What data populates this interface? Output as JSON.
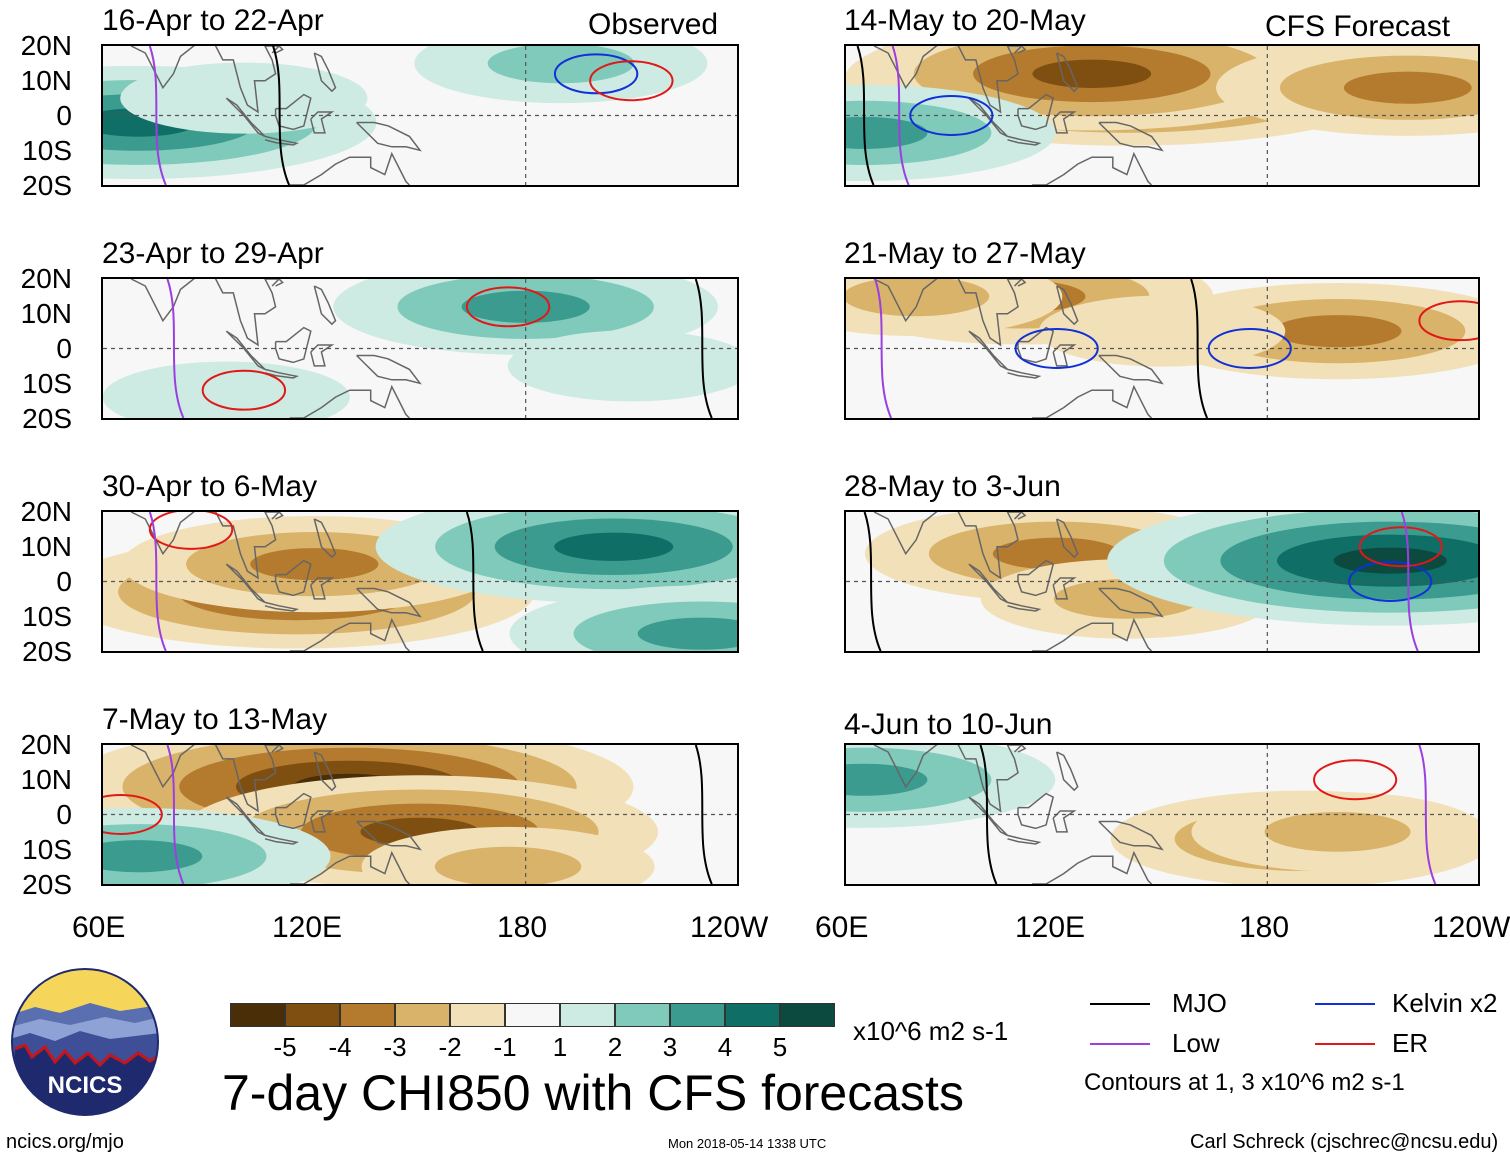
{
  "colors": {
    "background": "#f7f7f7",
    "palette": [
      "#4a2e08",
      "#7e4f10",
      "#b47a2e",
      "#d9b36a",
      "#f2e1b8",
      "#f7f7f7",
      "#cdebe2",
      "#80cabb",
      "#3b9b8e",
      "#0f6e65",
      "#0c4a40"
    ],
    "mjo": "#000000",
    "low": "#9b3fe0",
    "kelvin": "#1030d8",
    "er": "#e01818"
  },
  "headers": {
    "observed": "Observed",
    "forecast": "CFS Forecast"
  },
  "y_labels": [
    "20N",
    "10N",
    "0",
    "10S",
    "20S"
  ],
  "x_labels_left": [
    "60E",
    "120E",
    "180",
    "120W"
  ],
  "x_labels_right": [
    "60E",
    "120E",
    "180",
    "120W"
  ],
  "colorbar": {
    "ticks": [
      "-5",
      "-4",
      "-3",
      "-2",
      "-1",
      "1",
      "2",
      "3",
      "4",
      "5"
    ],
    "units": "x10^6 m2 s-1"
  },
  "legend": {
    "mjo": "MJO",
    "kelvin": "Kelvin x2",
    "low": "Low",
    "er": "ER",
    "contours_note": "Contours at 1, 3 x10^6 m2 s-1"
  },
  "main_title": "7-day CHI850 with CFS forecasts",
  "logo_text": "NCICS",
  "footer": {
    "url": "ncics.org/mjo",
    "timestamp": "Mon 2018-05-14 1338 UTC",
    "credit": "Carl Schreck (cjschrec@ncsu.edu)"
  },
  "chart_data": [
    {
      "type": "heatmap",
      "title": "16-Apr to 22-Apr",
      "source": "Observed",
      "xlim": [
        60,
        240
      ],
      "ylim": [
        -20,
        20
      ],
      "anomalies": [
        {
          "lon": 70,
          "lat": -2,
          "value": 4
        },
        {
          "lon": 100,
          "lat": 5,
          "value": 1.5
        },
        {
          "lon": 190,
          "lat": 15,
          "value": 2
        }
      ],
      "contours": [
        {
          "wave": "MJO",
          "lon": 110,
          "lat": 0
        },
        {
          "wave": "Low",
          "lon": 75,
          "lat": 0
        },
        {
          "wave": "Kelvin",
          "lon": 200,
          "lat": 12
        },
        {
          "wave": "ER",
          "lon": 210,
          "lat": 10
        }
      ]
    },
    {
      "type": "heatmap",
      "title": "23-Apr to 29-Apr",
      "source": "Observed",
      "xlim": [
        60,
        240
      ],
      "ylim": [
        -20,
        20
      ],
      "anomalies": [
        {
          "lon": 180,
          "lat": 12,
          "value": 3
        },
        {
          "lon": 95,
          "lat": -14,
          "value": 1.5
        },
        {
          "lon": 210,
          "lat": -5,
          "value": 1.5
        }
      ],
      "contours": [
        {
          "wave": "ER",
          "lon": 175,
          "lat": 12
        },
        {
          "wave": "ER",
          "lon": 100,
          "lat": -12
        },
        {
          "wave": "Low",
          "lon": 80,
          "lat": 0
        },
        {
          "wave": "MJO",
          "lon": 230,
          "lat": 0
        }
      ]
    },
    {
      "type": "heatmap",
      "title": "30-Apr to 6-May",
      "source": "Observed",
      "xlim": [
        60,
        240
      ],
      "ylim": [
        -20,
        20
      ],
      "anomalies": [
        {
          "lon": 115,
          "lat": -3,
          "value": -4
        },
        {
          "lon": 120,
          "lat": 5,
          "value": -3
        },
        {
          "lon": 205,
          "lat": 10,
          "value": 4
        },
        {
          "lon": 230,
          "lat": -15,
          "value": 3
        }
      ],
      "contours": [
        {
          "wave": "MJO",
          "lon": 165,
          "lat": 5
        },
        {
          "wave": "ER",
          "lon": 85,
          "lat": 15
        },
        {
          "wave": "Low",
          "lon": 75,
          "lat": 0
        }
      ]
    },
    {
      "type": "heatmap",
      "title": "7-May to 13-May",
      "source": "Observed",
      "xlim": [
        60,
        240
      ],
      "ylim": [
        -20,
        20
      ],
      "anomalies": [
        {
          "lon": 130,
          "lat": 8,
          "value": -5
        },
        {
          "lon": 150,
          "lat": -5,
          "value": -4
        },
        {
          "lon": 70,
          "lat": -12,
          "value": 3
        },
        {
          "lon": 175,
          "lat": -15,
          "value": -2
        }
      ],
      "contours": [
        {
          "wave": "Low",
          "lon": 80,
          "lat": 0
        },
        {
          "wave": "ER",
          "lon": 65,
          "lat": 0
        },
        {
          "wave": "MJO",
          "lon": 230,
          "lat": 0
        }
      ]
    },
    {
      "type": "heatmap",
      "title": "14-May to 20-May",
      "source": "CFS Forecast",
      "xlim": [
        60,
        240
      ],
      "ylim": [
        -20,
        20
      ],
      "anomalies": [
        {
          "lon": 140,
          "lat": 10,
          "value": -5
        },
        {
          "lon": 130,
          "lat": 12,
          "value": -4
        },
        {
          "lon": 65,
          "lat": -5,
          "value": 3
        },
        {
          "lon": 220,
          "lat": 8,
          "value": -3
        }
      ],
      "contours": [
        {
          "wave": "Kelvin",
          "lon": 90,
          "lat": 0
        },
        {
          "wave": "Low",
          "lon": 75,
          "lat": 0
        },
        {
          "wave": "MJO",
          "lon": 65,
          "lat": -15
        }
      ]
    },
    {
      "type": "heatmap",
      "title": "21-May to 27-May",
      "source": "CFS Forecast",
      "xlim": [
        60,
        240
      ],
      "ylim": [
        -20,
        20
      ],
      "anomalies": [
        {
          "lon": 110,
          "lat": 15,
          "value": -3
        },
        {
          "lon": 80,
          "lat": 15,
          "value": -2
        },
        {
          "lon": 200,
          "lat": 5,
          "value": -3
        },
        {
          "lon": 150,
          "lat": 5,
          "value": -1.5
        }
      ],
      "contours": [
        {
          "wave": "Kelvin",
          "lon": 120,
          "lat": 0
        },
        {
          "wave": "Kelvin",
          "lon": 175,
          "lat": 0
        },
        {
          "wave": "Low",
          "lon": 70,
          "lat": 0
        },
        {
          "wave": "ER",
          "lon": 235,
          "lat": 8
        },
        {
          "wave": "MJO",
          "lon": 160,
          "lat": -12
        }
      ]
    },
    {
      "type": "heatmap",
      "title": "28-May to 3-Jun",
      "source": "CFS Forecast",
      "xlim": [
        60,
        240
      ],
      "ylim": [
        -20,
        20
      ],
      "anomalies": [
        {
          "lon": 120,
          "lat": 8,
          "value": -3
        },
        {
          "lon": 140,
          "lat": -5,
          "value": -2
        },
        {
          "lon": 220,
          "lat": 10,
          "value": 4
        },
        {
          "lon": 215,
          "lat": 6,
          "value": 5
        }
      ],
      "contours": [
        {
          "wave": "Kelvin",
          "lon": 215,
          "lat": 0
        },
        {
          "wave": "ER",
          "lon": 218,
          "lat": 10
        },
        {
          "wave": "Low",
          "lon": 220,
          "lat": 10
        },
        {
          "wave": "MJO",
          "lon": 67,
          "lat": 0
        }
      ]
    },
    {
      "type": "heatmap",
      "title": "4-Jun to 10-Jun",
      "source": "CFS Forecast",
      "xlim": [
        60,
        240
      ],
      "ylim": [
        -20,
        20
      ],
      "anomalies": [
        {
          "lon": 65,
          "lat": 10,
          "value": 3
        },
        {
          "lon": 190,
          "lat": -7,
          "value": -3
        },
        {
          "lon": 200,
          "lat": -5,
          "value": -2
        }
      ],
      "contours": [
        {
          "wave": "MJO",
          "lon": 100,
          "lat": -5
        },
        {
          "wave": "ER",
          "lon": 205,
          "lat": 10
        },
        {
          "wave": "Low",
          "lon": 225,
          "lat": 10
        }
      ]
    }
  ]
}
